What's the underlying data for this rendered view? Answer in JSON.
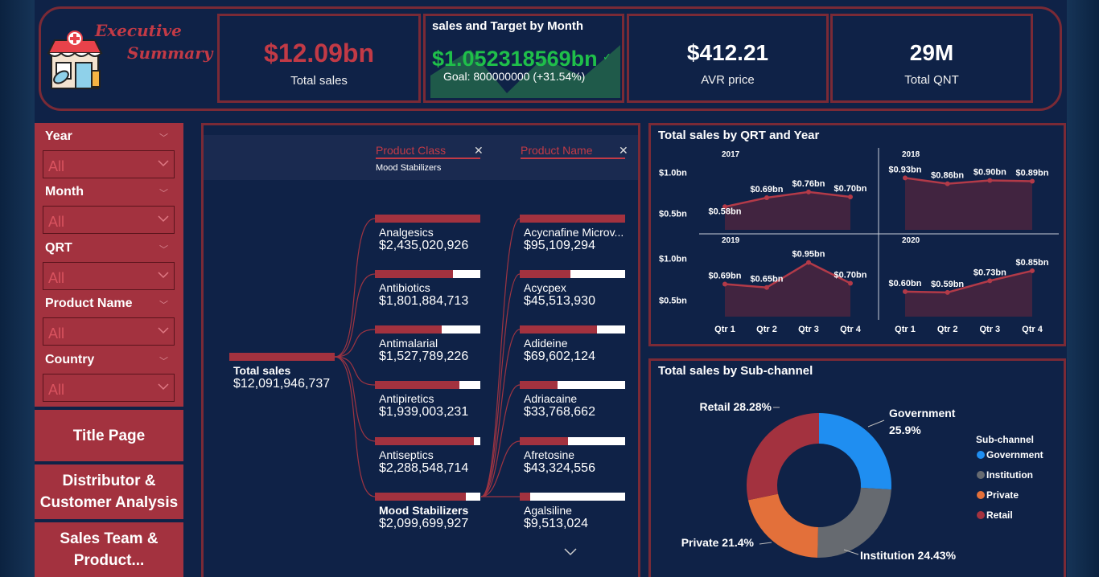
{
  "header": {
    "title_line1": "Executive",
    "title_line2": "Summary",
    "logo_icon": "pharmacy-store-icon"
  },
  "kpis": {
    "total_sales": {
      "value": "$12.09bn",
      "label": "Total sales"
    },
    "gauge": {
      "title": "sales and Target by Month",
      "value": "$1.052318569bn",
      "goal": "Goal: 800000000 (+31.54%)"
    },
    "avr_price": {
      "value": "$412.21",
      "label": "AVR price"
    },
    "total_qnt": {
      "value": "29M",
      "label": "Total QNT"
    }
  },
  "slicers": [
    {
      "label": "Year",
      "value": "All"
    },
    {
      "label": "Month",
      "value": "All"
    },
    {
      "label": "QRT",
      "value": "All"
    },
    {
      "label": "Product Name",
      "value": "All"
    },
    {
      "label": "Country",
      "value": "All"
    }
  ],
  "nav": {
    "title_page": "Title Page",
    "distributor": "Distributor & Customer Analysis",
    "sales_team": "Sales Team & Product..."
  },
  "decomp": {
    "col1_header": "Product Class",
    "col1_filter": "Mood Stabilizers",
    "col2_header": "Product Name",
    "root": {
      "name": "Total sales",
      "value": "$12,091,946,737"
    },
    "classes": [
      {
        "name": "Analgesics",
        "value": "$2,435,020,926",
        "fraction": 1.0
      },
      {
        "name": "Antibiotics",
        "value": "$1,801,884,713",
        "fraction": 0.74
      },
      {
        "name": "Antimalarial",
        "value": "$1,527,789,226",
        "fraction": 0.63
      },
      {
        "name": "Antipiretics",
        "value": "$1,939,003,231",
        "fraction": 0.8
      },
      {
        "name": "Antiseptics",
        "value": "$2,288,548,714",
        "fraction": 0.94
      },
      {
        "name": "Mood Stabilizers",
        "value": "$2,099,699,927",
        "fraction": 0.86
      }
    ],
    "products": [
      {
        "name": "Acycnafine Microv...",
        "value": "$95,109,294",
        "fraction": 1.0
      },
      {
        "name": "Acycpex",
        "value": "$45,513,930",
        "fraction": 0.48
      },
      {
        "name": "Adideine",
        "value": "$69,602,124",
        "fraction": 0.73
      },
      {
        "name": "Adriacaine",
        "value": "$33,768,662",
        "fraction": 0.36
      },
      {
        "name": "Afretosine",
        "value": "$43,324,556",
        "fraction": 0.46
      },
      {
        "name": "Agalsiline",
        "value": "$9,513,024",
        "fraction": 0.1
      }
    ]
  },
  "chart_data": [
    {
      "type": "area",
      "title": "Total sales by QRT and Year",
      "categories": [
        "Qtr 1",
        "Qtr 2",
        "Qtr 3",
        "Qtr 4"
      ],
      "y_ticks": [
        "$1.0bn",
        "$0.5bn"
      ],
      "ylim": [
        0.3,
        1.1
      ],
      "series": [
        {
          "name": "2017",
          "values": [
            0.58,
            0.69,
            0.76,
            0.7
          ],
          "labels": [
            "$0.58bn",
            "$0.69bn",
            "$0.76bn",
            "$0.70bn"
          ]
        },
        {
          "name": "2018",
          "values": [
            0.93,
            0.86,
            0.9,
            0.89
          ],
          "labels": [
            "$0.93bn",
            "$0.86bn",
            "$0.90bn",
            "$0.89bn"
          ]
        },
        {
          "name": "2019",
          "values": [
            0.69,
            0.65,
            0.95,
            0.7
          ],
          "labels": [
            "$0.69bn",
            "$0.65bn",
            "$0.95bn",
            "$0.70bn"
          ]
        },
        {
          "name": "2020",
          "values": [
            0.6,
            0.59,
            0.73,
            0.85
          ],
          "labels": [
            "$0.60bn",
            "$0.59bn",
            "$0.73bn",
            "$0.85bn"
          ]
        }
      ],
      "color": "#b23a48"
    },
    {
      "type": "pie",
      "title": "Total sales by Sub-channel",
      "legend_title": "Sub-channel",
      "legend_position": "right",
      "slices": [
        {
          "name": "Government",
          "value": 25.9,
          "label": "Government 25.9%",
          "color": "#1f8ef1"
        },
        {
          "name": "Institution",
          "value": 24.43,
          "label": "Institution 24.43%",
          "color": "#666a70"
        },
        {
          "name": "Private",
          "value": 21.4,
          "label": "Private 21.4%",
          "color": "#e3703a"
        },
        {
          "name": "Retail",
          "value": 28.28,
          "label": "Retail 28.28%",
          "color": "#a3323f"
        }
      ]
    }
  ]
}
